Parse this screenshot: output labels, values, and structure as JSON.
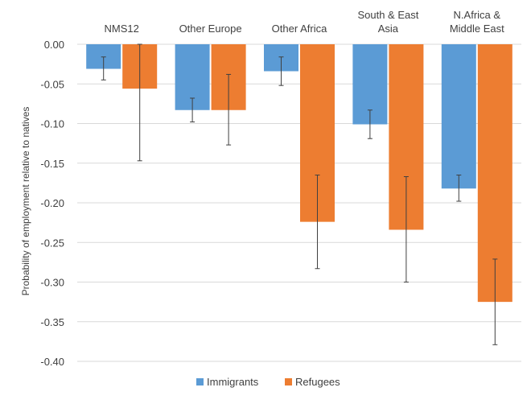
{
  "chart_data": {
    "type": "bar",
    "title": "",
    "ylabel": "Probability of employment relative to natives",
    "xlabel": "",
    "ylim": [
      -0.4,
      0.0
    ],
    "yticks": [
      "0.00",
      "-0.05",
      "-0.10",
      "-0.15",
      "-0.20",
      "-0.25",
      "-0.30",
      "-0.35",
      "-0.40"
    ],
    "categories": [
      [
        "NMS12"
      ],
      [
        "Other Europe"
      ],
      [
        "Other Africa"
      ],
      [
        "South & East",
        "Asia"
      ],
      [
        "N.Africa &",
        "Middle East"
      ]
    ],
    "series": [
      {
        "name": "Immigrants",
        "color": "#5b9bd5",
        "values": [
          -0.031,
          -0.083,
          -0.034,
          -0.101,
          -0.182
        ],
        "err_low": [
          -0.045,
          -0.098,
          -0.052,
          -0.119,
          -0.198
        ],
        "err_high": [
          -0.016,
          -0.068,
          -0.016,
          -0.083,
          -0.165
        ]
      },
      {
        "name": "Refugees",
        "color": "#ed7d31",
        "values": [
          -0.056,
          -0.083,
          -0.224,
          -0.234,
          -0.325
        ],
        "err_low": [
          -0.147,
          -0.127,
          -0.283,
          -0.3,
          -0.379
        ],
        "err_high": [
          0.0,
          -0.038,
          -0.165,
          -0.167,
          -0.271
        ]
      }
    ],
    "grid": true,
    "legend": "bottom"
  }
}
